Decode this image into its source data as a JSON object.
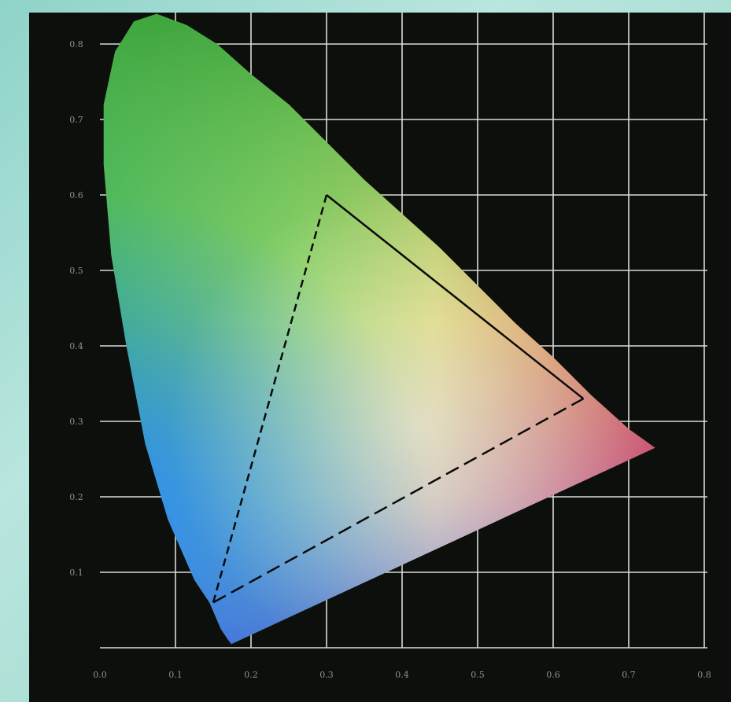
{
  "chart_data": {
    "type": "scatter",
    "title": "",
    "xlabel": "",
    "ylabel": "",
    "xlim": [
      0.0,
      0.8
    ],
    "ylim": [
      0.0,
      0.9
    ],
    "grid": true,
    "x_ticks": [
      "0.0",
      "0.1",
      "0.2",
      "0.3",
      "0.4",
      "0.5",
      "0.6",
      "0.7",
      "0.8"
    ],
    "y_ticks": [
      "0.1",
      "0.2",
      "0.3",
      "0.4",
      "0.5",
      "0.6",
      "0.7",
      "0.8"
    ],
    "spectral_locus": [
      [
        0.174,
        0.005
      ],
      [
        0.17,
        0.01
      ],
      [
        0.16,
        0.025
      ],
      [
        0.145,
        0.06
      ],
      [
        0.125,
        0.09
      ],
      [
        0.09,
        0.17
      ],
      [
        0.06,
        0.27
      ],
      [
        0.035,
        0.4
      ],
      [
        0.015,
        0.52
      ],
      [
        0.005,
        0.64
      ],
      [
        0.005,
        0.72
      ],
      [
        0.02,
        0.79
      ],
      [
        0.045,
        0.83
      ],
      [
        0.075,
        0.84
      ],
      [
        0.115,
        0.825
      ],
      [
        0.155,
        0.8
      ],
      [
        0.2,
        0.76
      ],
      [
        0.25,
        0.72
      ],
      [
        0.3,
        0.67
      ],
      [
        0.35,
        0.62
      ],
      [
        0.4,
        0.575
      ],
      [
        0.45,
        0.53
      ],
      [
        0.5,
        0.48
      ],
      [
        0.55,
        0.43
      ],
      [
        0.6,
        0.385
      ],
      [
        0.65,
        0.335
      ],
      [
        0.7,
        0.29
      ],
      [
        0.735,
        0.265
      ]
    ],
    "gamut_triangle": {
      "red": [
        0.64,
        0.33
      ],
      "green": [
        0.3,
        0.6
      ],
      "blue": [
        0.15,
        0.06
      ]
    }
  }
}
